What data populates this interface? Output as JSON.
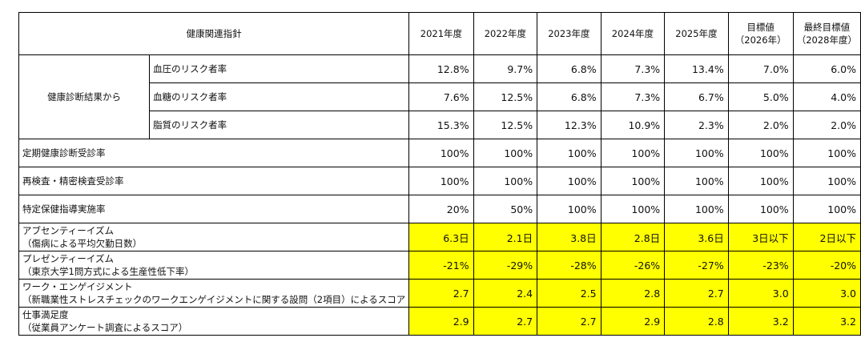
{
  "header": {
    "indicator": "健康関連指針",
    "years": [
      "2021年度",
      "2022年度",
      "2023年度",
      "2024年度",
      "2025年度"
    ],
    "target": [
      "目標値",
      "（2026年）"
    ],
    "final_target": [
      "最終目標値",
      "（2028年度）"
    ]
  },
  "group_label": "健康診断結果から",
  "rows": [
    {
      "label": [
        "血圧のリスク者率"
      ],
      "sub": true,
      "values": [
        "12.8%",
        "9.7%",
        "6.8%",
        "7.3%",
        "13.4%",
        "7.0%",
        "6.0%"
      ]
    },
    {
      "label": [
        "血糖のリスク者率"
      ],
      "sub": true,
      "values": [
        "7.6%",
        "12.5%",
        "6.8%",
        "7.3%",
        "6.7%",
        "5.0%",
        "4.0%"
      ]
    },
    {
      "label": [
        "脂質のリスク者率"
      ],
      "sub": true,
      "values": [
        "15.3%",
        "12.5%",
        "12.3%",
        "10.9%",
        "2.3%",
        "2.0%",
        "2.0%"
      ]
    },
    {
      "label": [
        "定期健康診断受診率"
      ],
      "values": [
        "100%",
        "100%",
        "100%",
        "100%",
        "100%",
        "100%",
        "100%"
      ]
    },
    {
      "label": [
        "再検査・精密検査受診率"
      ],
      "values": [
        "100%",
        "100%",
        "100%",
        "100%",
        "100%",
        "100%",
        "100%"
      ]
    },
    {
      "label": [
        "特定保健指導実施率"
      ],
      "values": [
        "20%",
        "50%",
        "100%",
        "100%",
        "100%",
        "100%",
        "100%"
      ]
    },
    {
      "label": [
        "アブセンティーイズム",
        "（傷病による平均欠勤日数）"
      ],
      "highlight": true,
      "values": [
        "6.3日",
        "2.1日",
        "3.8日",
        "2.8日",
        "3.6日",
        "3日以下",
        "2日以下"
      ]
    },
    {
      "label": [
        "プレゼンティーイズム",
        "（東京大学1問方式による生産性低下率）"
      ],
      "highlight": true,
      "values": [
        "-21%",
        "-29%",
        "-28%",
        "-26%",
        "-27%",
        "-23%",
        "-20%"
      ]
    },
    {
      "label": [
        "ワーク・エンゲイジメント",
        "（新職業性ストレスチェックのワークエンゲイジメントに関する設問（2項目）によるスコア"
      ],
      "highlight": true,
      "values": [
        "2.7",
        "2.4",
        "2.5",
        "2.8",
        "2.7",
        "3.0",
        "3.0"
      ]
    },
    {
      "label": [
        "仕事満足度",
        "（従業員アンケート調査によるスコア）"
      ],
      "highlight": true,
      "values": [
        "2.9",
        "2.7",
        "2.7",
        "2.9",
        "2.8",
        "3.2",
        "3.2"
      ]
    }
  ],
  "colors": {
    "highlight": "#ffff00",
    "border": "#000000"
  }
}
